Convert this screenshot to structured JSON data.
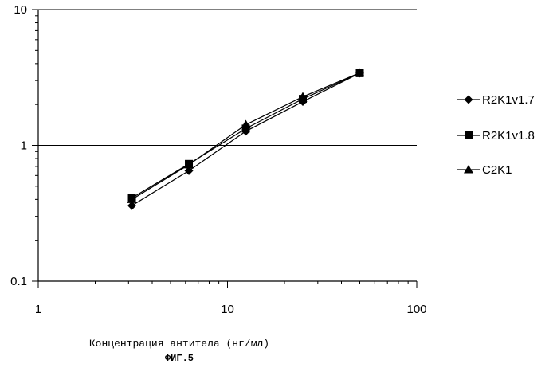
{
  "chart_data": {
    "type": "line",
    "title": "",
    "xlabel": "Концентрация антитела (нг/мл)",
    "ylabel": "",
    "x_scale": "log",
    "y_scale": "log",
    "xlim": [
      1,
      100
    ],
    "ylim": [
      0.1,
      10
    ],
    "x_ticks": [
      "1",
      "10",
      "100"
    ],
    "y_ticks": [
      "10",
      "1",
      "0.1"
    ],
    "grid": "horizontal at decades",
    "legend_position": "right",
    "x": [
      3.125,
      6.25,
      12.5,
      25,
      50
    ],
    "series": [
      {
        "name": "R2K1v1.7",
        "marker": "diamond",
        "values": [
          0.36,
          0.65,
          1.27,
          2.1,
          3.4
        ]
      },
      {
        "name": "R2K1v1.8",
        "marker": "square",
        "values": [
          0.41,
          0.73,
          1.33,
          2.2,
          3.4
        ]
      },
      {
        "name": "C2K1",
        "marker": "triangle",
        "values": [
          0.4,
          0.72,
          1.42,
          2.28,
          3.42
        ]
      }
    ]
  },
  "figure_label": "ФИГ.5"
}
